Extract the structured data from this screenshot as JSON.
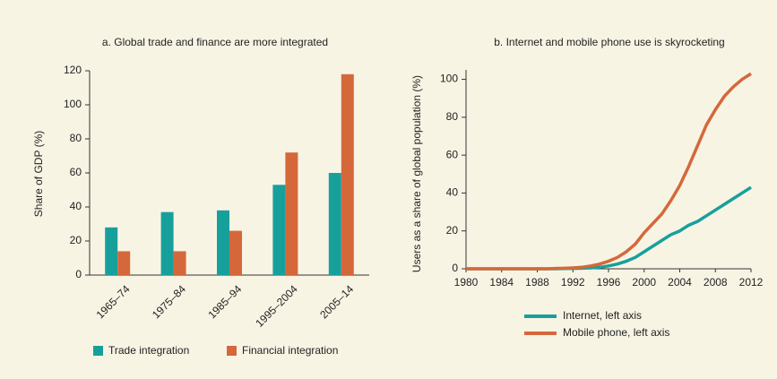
{
  "chart_data": [
    {
      "type": "bar",
      "title": "a. Global trade and finance are more integrated",
      "y_label": "Share of GDP (%)",
      "categories": [
        "1965–74",
        "1975–84",
        "1985–94",
        "1995–2004",
        "2005–14"
      ],
      "series": [
        {
          "name": "Trade integration",
          "color": "#17a09b",
          "values": [
            28,
            37,
            38,
            53,
            60
          ]
        },
        {
          "name": "Financial integration",
          "color": "#d4683b",
          "values": [
            14,
            14,
            26,
            72,
            118
          ]
        }
      ],
      "ylim": [
        0,
        120
      ],
      "yticks": [
        0,
        20,
        40,
        60,
        80,
        100,
        120
      ],
      "legend": "bottom"
    },
    {
      "type": "line",
      "title": "b. Internet and mobile phone use is skyrocketing",
      "y_label": "Users  as a share of global population (%)",
      "x": [
        1980,
        1981,
        1982,
        1983,
        1984,
        1985,
        1986,
        1987,
        1988,
        1989,
        1990,
        1991,
        1992,
        1993,
        1994,
        1995,
        1996,
        1997,
        1998,
        1999,
        2000,
        2001,
        2002,
        2003,
        2004,
        2005,
        2006,
        2007,
        2008,
        2009,
        2010,
        2011,
        2012
      ],
      "series": [
        {
          "name": "Internet, left axis",
          "color": "#17a09b",
          "values": [
            0,
            0,
            0,
            0,
            0,
            0,
            0,
            0,
            0,
            0,
            0,
            0.1,
            0.2,
            0.3,
            0.5,
            0.8,
            1.5,
            2.5,
            4,
            6,
            9,
            12,
            15,
            18,
            20,
            23,
            25,
            28,
            31,
            34,
            37,
            40,
            43
          ]
        },
        {
          "name": "Mobile phone, left axis",
          "color": "#d4683b",
          "values": [
            0,
            0,
            0,
            0,
            0,
            0,
            0,
            0,
            0,
            0,
            0.2,
            0.3,
            0.5,
            0.8,
            1.5,
            2.5,
            4,
            6,
            9,
            13,
            19,
            24,
            29,
            36,
            44,
            54,
            65,
            76,
            84,
            91,
            96,
            100,
            103
          ]
        }
      ],
      "xlim": [
        1980,
        2012
      ],
      "xticks": [
        1980,
        1984,
        1988,
        1992,
        1996,
        2000,
        2004,
        2008,
        2012
      ],
      "ylim": [
        0,
        105
      ],
      "yticks": [
        0,
        20,
        40,
        60,
        80,
        100
      ],
      "legend": "bottom"
    }
  ]
}
